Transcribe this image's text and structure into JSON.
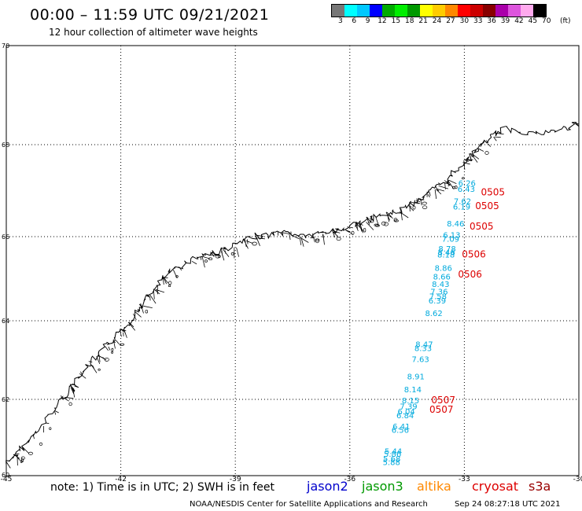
{
  "header": {
    "title": "00:00 – 11:59 UTC 09/21/2021",
    "subtitle": "12 hour collection of altimeter wave heights"
  },
  "legend": {
    "colors": [
      "#777777",
      "#00ffff",
      "#00c8ff",
      "#0000ff",
      "#00aa00",
      "#00ee00",
      "#009900",
      "#ffff00",
      "#ffcc00",
      "#ff8800",
      "#ff0000",
      "#cc0000",
      "#880000",
      "#aa00aa",
      "#dd55dd",
      "#ffaaee",
      "#000000"
    ],
    "ticks": [
      "3",
      "6",
      "9",
      "12",
      "15",
      "18",
      "21",
      "24",
      "27",
      "30",
      "33",
      "36",
      "39",
      "42",
      "45",
      "70"
    ],
    "unit": "(ft)"
  },
  "axes": {
    "lon_labels": [
      "-45",
      "-42",
      "-39",
      "-36",
      "-33",
      "-30"
    ],
    "lat_labels": [
      "70",
      "68",
      "66",
      "64",
      "62",
      "60"
    ]
  },
  "measurements": {
    "swh_color": "#00aadd",
    "swh": [
      {
        "lon": -32.93,
        "lat": 67.17,
        "v": "6.26"
      },
      {
        "lon": -32.95,
        "lat": 67.04,
        "v": "6.43"
      },
      {
        "lon": -33.05,
        "lat": 66.78,
        "v": "7.62"
      },
      {
        "lon": -33.07,
        "lat": 66.66,
        "v": "6.19"
      },
      {
        "lon": -33.23,
        "lat": 66.29,
        "v": "8.46"
      },
      {
        "lon": -33.33,
        "lat": 66.04,
        "v": "6.13"
      },
      {
        "lon": -33.36,
        "lat": 65.95,
        "v": "7.09"
      },
      {
        "lon": -33.45,
        "lat": 65.72,
        "v": "8.78"
      },
      {
        "lon": -33.47,
        "lat": 65.64,
        "v": "8.46"
      },
      {
        "lon": -33.48,
        "lat": 65.58,
        "v": "8.18"
      },
      {
        "lon": -33.55,
        "lat": 65.26,
        "v": "8.86"
      },
      {
        "lon": -33.59,
        "lat": 65.06,
        "v": "8.66"
      },
      {
        "lon": -33.62,
        "lat": 64.88,
        "v": "8.43"
      },
      {
        "lon": -33.66,
        "lat": 64.7,
        "v": "7.36"
      },
      {
        "lon": -33.69,
        "lat": 64.59,
        "v": "7.58"
      },
      {
        "lon": -33.71,
        "lat": 64.49,
        "v": "6.39"
      },
      {
        "lon": -33.8,
        "lat": 64.19,
        "v": "8.62"
      },
      {
        "lon": -34.05,
        "lat": 63.41,
        "v": "8.47"
      },
      {
        "lon": -34.08,
        "lat": 63.31,
        "v": "8.33"
      },
      {
        "lon": -34.15,
        "lat": 63.03,
        "v": "7.63"
      },
      {
        "lon": -34.27,
        "lat": 62.59,
        "v": "8.91"
      },
      {
        "lon": -34.35,
        "lat": 62.26,
        "v": "8.14"
      },
      {
        "lon": -34.41,
        "lat": 61.98,
        "v": "8.15"
      },
      {
        "lon": -34.46,
        "lat": 61.82,
        "v": "7.39"
      },
      {
        "lon": -34.52,
        "lat": 61.69,
        "v": "6.04"
      },
      {
        "lon": -34.55,
        "lat": 61.58,
        "v": "6.84"
      },
      {
        "lon": -34.65,
        "lat": 61.29,
        "v": "6.41"
      },
      {
        "lon": -34.68,
        "lat": 61.2,
        "v": "6.56"
      },
      {
        "lon": -34.86,
        "lat": 60.64,
        "v": "5.44"
      },
      {
        "lon": -34.88,
        "lat": 60.56,
        "v": "5.86"
      },
      {
        "lon": -34.9,
        "lat": 60.44,
        "v": "5.68"
      },
      {
        "lon": -34.91,
        "lat": 60.34,
        "v": "5.88"
      }
    ],
    "time_color": "#dd0000",
    "times": [
      {
        "lon": -32.25,
        "lat": 66.98,
        "v": "0505"
      },
      {
        "lon": -32.4,
        "lat": 66.68,
        "v": "0505"
      },
      {
        "lon": -32.55,
        "lat": 66.24,
        "v": "0505"
      },
      {
        "lon": -32.75,
        "lat": 65.6,
        "v": "0506"
      },
      {
        "lon": -32.85,
        "lat": 65.12,
        "v": "0506"
      },
      {
        "lon": -33.55,
        "lat": 62.0,
        "v": "0507"
      },
      {
        "lon": -33.6,
        "lat": 61.75,
        "v": "0507"
      }
    ]
  },
  "footer": {
    "note": "note:  1) Time is in UTC;  2) SWH is in feet",
    "satellites": [
      {
        "name": "jason2",
        "color": "#0000cc"
      },
      {
        "name": "jason3",
        "color": "#009900"
      },
      {
        "name": "altika",
        "color": "#ff8800"
      },
      {
        "name": "cryosat",
        "color": "#dd0000"
      },
      {
        "name": "s3a",
        "color": "#990000"
      }
    ],
    "credit": "NOAA/NESDIS Center for Satellite Applications and Research",
    "timestamp": "Sep 24 08:27:18 UTC 2021"
  }
}
